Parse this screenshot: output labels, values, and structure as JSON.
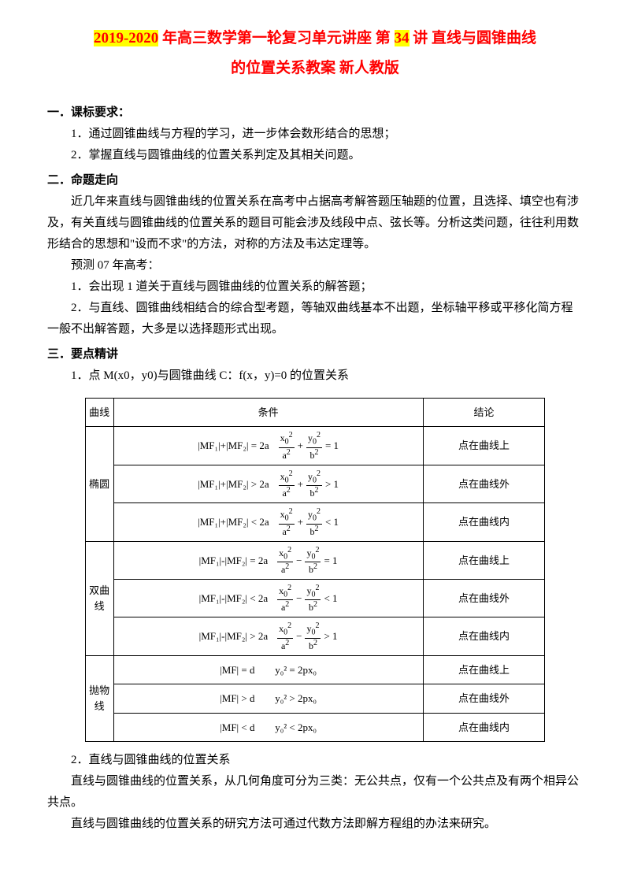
{
  "title": {
    "part1": "2019-2020",
    "part2": " 年高三数学第一轮复习单元讲座 第 ",
    "part3": "34",
    "part4": " 讲 直线与圆锥曲线",
    "line2": "的位置关系教案 新人教版"
  },
  "sec1": {
    "head": "一．课标要求：",
    "p1": "1．通过圆锥曲线与方程的学习，进一步体会数形结合的思想；",
    "p2": "2．掌握直线与圆锥曲线的位置关系判定及其相关问题。"
  },
  "sec2": {
    "head": "二．命题走向",
    "p1": "近几年来直线与圆锥曲线的位置关系在高考中占据高考解答题压轴题的位置，且选择、填空也有涉及，有关直线与圆锥曲线的位置关系的题目可能会涉及线段中点、弦长等。分析这类问题，往往利用数形结合的思想和\"设而不求\"的方法，对称的方法及韦达定理等。",
    "p2": "预测 07 年高考：",
    "p3": "1．会出现 1 道关于直线与圆锥曲线的位置关系的解答题；",
    "p4": "2．与直线、圆锥曲线相结合的综合型考题，等轴双曲线基本不出题，坐标轴平移或平移化简方程一般不出解答题，大多是以选择题形式出现。"
  },
  "sec3": {
    "head": "三．要点精讲",
    "p1": "1．点 M(x0，y0)与圆锥曲线 C：f(x，y)=0 的位置关系"
  },
  "table": {
    "headers": {
      "c1": "曲线",
      "c2": "条件",
      "c3": "结论"
    },
    "ellipse": {
      "label": "椭圆",
      "r1": {
        "lhs": "|MF₁|+|MF₂| = 2a",
        "op": "= 1",
        "concl": "点在曲线上"
      },
      "r2": {
        "lhs": "|MF₁|+|MF₂| > 2a",
        "op": "> 1",
        "concl": "点在曲线外"
      },
      "r3": {
        "lhs": "|MF₁|+|MF₂| < 2a",
        "op": "< 1",
        "concl": "点在曲线内"
      }
    },
    "hyperbola": {
      "label": "双曲线",
      "r1": {
        "lhs": "|MF₁|-|MF₂| = 2a",
        "op": "= 1",
        "concl": "点在曲线上"
      },
      "r2": {
        "lhs": "|MF₁|-|MF₂| < 2a",
        "op": "< 1",
        "concl": "点在曲线外"
      },
      "r3": {
        "lhs": "|MF₁|-|MF₂| > 2a",
        "op": "> 1",
        "concl": "点在曲线内"
      }
    },
    "parabola": {
      "label": "抛物线",
      "r1": {
        "lhs": "|MF| = d",
        "rhs": "y₀² = 2px₀",
        "concl": "点在曲线上"
      },
      "r2": {
        "lhs": "|MF| > d",
        "rhs": "y₀² > 2px₀",
        "concl": "点在曲线外"
      },
      "r3": {
        "lhs": "|MF| < d",
        "rhs": "y₀² < 2px₀",
        "concl": "点在曲线内"
      }
    }
  },
  "sec4": {
    "p1": "2．直线与圆锥曲线的位置关系",
    "p2": "直线与圆锥曲线的位置关系，从几何角度可分为三类：无公共点，仅有一个公共点及有两个相异公共点。",
    "p3": "直线与圆锥曲线的位置关系的研究方法可通过代数方法即解方程组的办法来研究。"
  }
}
